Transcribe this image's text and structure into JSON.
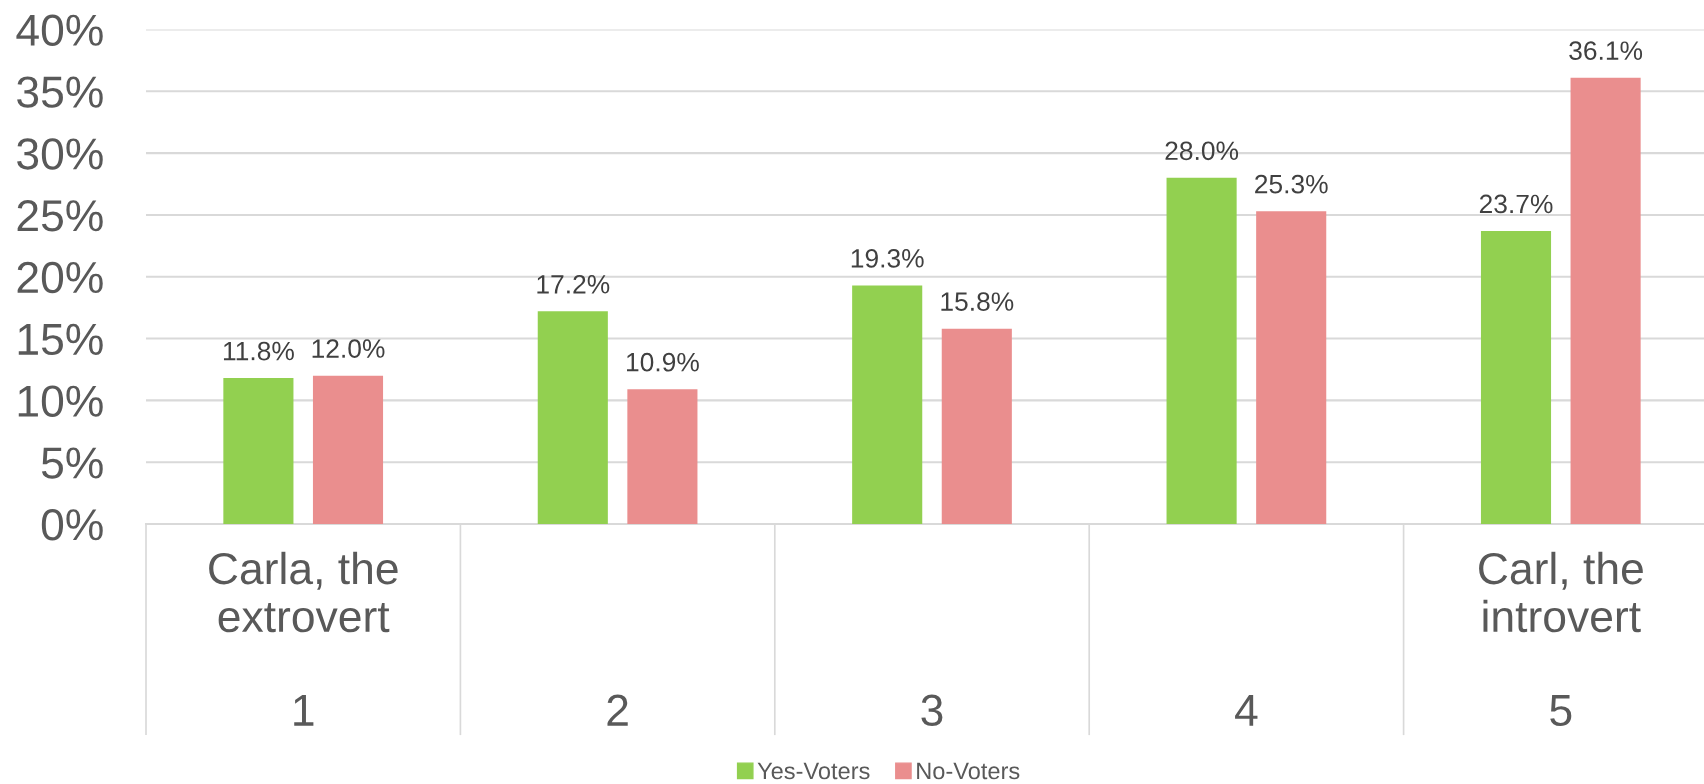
{
  "chart_data": {
    "type": "bar",
    "categories": [
      "Carla, the\nextrovert\n1",
      "2",
      "3",
      "4",
      "Carl, the\nintrovert\n5"
    ],
    "series": [
      {
        "name": "Yes-Voters",
        "color": "#92d050",
        "values": [
          11.8,
          17.2,
          19.3,
          28.0,
          23.7
        ],
        "value_labels": [
          "11.8%",
          "17.2%",
          "19.3%",
          "28.0%",
          "23.7%"
        ]
      },
      {
        "name": "No-Voters",
        "color": "#ea8e8e",
        "values": [
          12.0,
          10.9,
          15.8,
          25.3,
          36.1
        ],
        "value_labels": [
          "12.0%",
          "10.9%",
          "15.8%",
          "25.3%",
          "36.1%"
        ]
      }
    ],
    "ylim": [
      0,
      40
    ],
    "yticks": [
      {
        "value": 0,
        "label": "0%"
      },
      {
        "value": 5,
        "label": "5%"
      },
      {
        "value": 10,
        "label": "10%"
      },
      {
        "value": 15,
        "label": "15%"
      },
      {
        "value": 20,
        "label": "20%"
      },
      {
        "value": 25,
        "label": "25%"
      },
      {
        "value": 30,
        "label": "30%"
      },
      {
        "value": 35,
        "label": "35%"
      },
      {
        "value": 40,
        "label": "40%"
      }
    ],
    "grid": "y",
    "legend": "bottom"
  }
}
